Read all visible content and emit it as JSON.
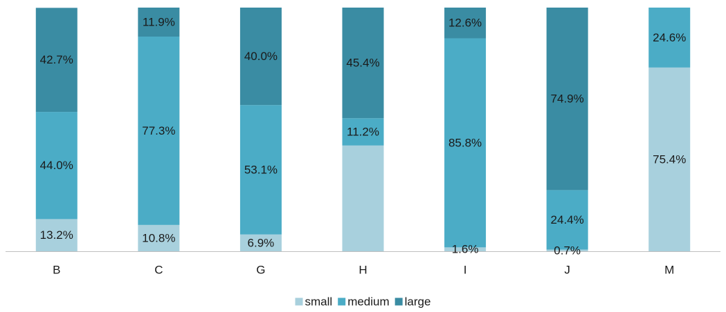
{
  "chart_data": {
    "type": "bar",
    "stacked": true,
    "percent": true,
    "categories": [
      "B",
      "C",
      "G",
      "H",
      "I",
      "J",
      "M"
    ],
    "series": [
      {
        "name": "small",
        "color": "#a8d0dd",
        "values": [
          13.2,
          10.8,
          6.9,
          43.4,
          1.6,
          0.7,
          75.4
        ]
      },
      {
        "name": "medium",
        "color": "#4bacc6",
        "values": [
          44.0,
          77.3,
          53.1,
          11.2,
          85.8,
          24.4,
          24.6
        ]
      },
      {
        "name": "large",
        "color": "#3a8ca3",
        "values": [
          42.7,
          11.9,
          40.0,
          45.4,
          12.6,
          74.9,
          0.0
        ]
      }
    ],
    "data_labels": [
      [
        "13.2%",
        "44.0%",
        "42.7%"
      ],
      [
        "10.8%",
        "77.3%",
        "11.9%"
      ],
      [
        "6.9%",
        "53.1%",
        "40.0%"
      ],
      [
        "",
        "11.2%",
        "45.4%"
      ],
      [
        "1.6%",
        "85.8%",
        "12.6%"
      ],
      [
        "0.7%",
        "24.4%",
        "74.9%"
      ],
      [
        "75.4%",
        "24.6%",
        ""
      ]
    ],
    "ylim": [
      0,
      100
    ],
    "legend_position": "bottom",
    "grid": false,
    "axis_color": "#bfbfbf"
  }
}
